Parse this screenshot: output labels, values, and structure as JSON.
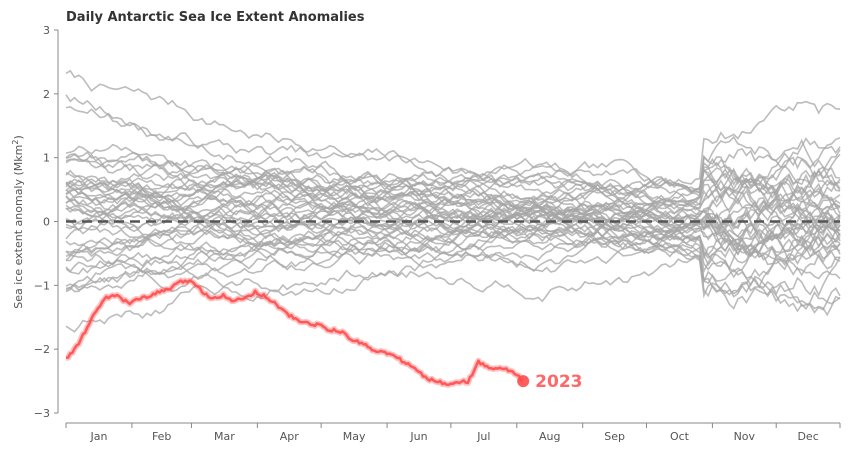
{
  "chart_data": {
    "type": "line",
    "title": "Daily Antarctic Sea Ice Extent Anomalies",
    "ylabel_main": "Sea ice extent anomaly (Mkm",
    "ylabel_sup": "2",
    "ylabel_close": ")",
    "xlabel": "",
    "ylim": [
      -3,
      3
    ],
    "xlim": [
      1,
      365
    ],
    "yticks": [
      -3,
      -2,
      -1,
      0,
      1,
      2,
      3
    ],
    "ytick_labels": [
      "−3",
      "−2",
      "−1",
      "0",
      "1",
      "2",
      "3"
    ],
    "months": [
      "Jan",
      "Feb",
      "Mar",
      "Apr",
      "May",
      "Jun",
      "Jul",
      "Aug",
      "Sep",
      "Oct",
      "Nov",
      "Dec"
    ],
    "month_start_days": [
      1,
      32,
      60,
      91,
      121,
      152,
      182,
      213,
      244,
      274,
      305,
      335,
      365
    ],
    "zero_line": 0,
    "grid": false,
    "colors": {
      "background_years": "#a6a6a6",
      "highlight": "#ff4d4d",
      "zero_line": "#555555",
      "axis": "#888888"
    },
    "highlight_series": {
      "name": "2023",
      "x": [
        1,
        4,
        8,
        12,
        16,
        20,
        25,
        30,
        35,
        40,
        45,
        50,
        55,
        60,
        65,
        70,
        75,
        80,
        85,
        90,
        95,
        100,
        105,
        110,
        115,
        120,
        125,
        130,
        135,
        140,
        145,
        150,
        155,
        160,
        165,
        170,
        175,
        180,
        185,
        190,
        195,
        200,
        205,
        210,
        213,
        216
      ],
      "values": [
        -2.15,
        -2.05,
        -1.85,
        -1.6,
        -1.35,
        -1.2,
        -1.15,
        -1.28,
        -1.22,
        -1.18,
        -1.1,
        -1.05,
        -0.95,
        -0.92,
        -1.1,
        -1.2,
        -1.15,
        -1.25,
        -1.2,
        -1.1,
        -1.18,
        -1.3,
        -1.45,
        -1.55,
        -1.6,
        -1.62,
        -1.7,
        -1.72,
        -1.85,
        -1.9,
        -2.0,
        -2.05,
        -2.1,
        -2.2,
        -2.3,
        -2.45,
        -2.5,
        -2.55,
        -2.5,
        -2.52,
        -2.2,
        -2.3,
        -2.28,
        -2.35,
        -2.4,
        -2.5
      ]
    },
    "annotation": {
      "text": "2023",
      "x": 216,
      "y": -2.5
    },
    "background_series_count": 44,
    "background_seed": 7
  }
}
